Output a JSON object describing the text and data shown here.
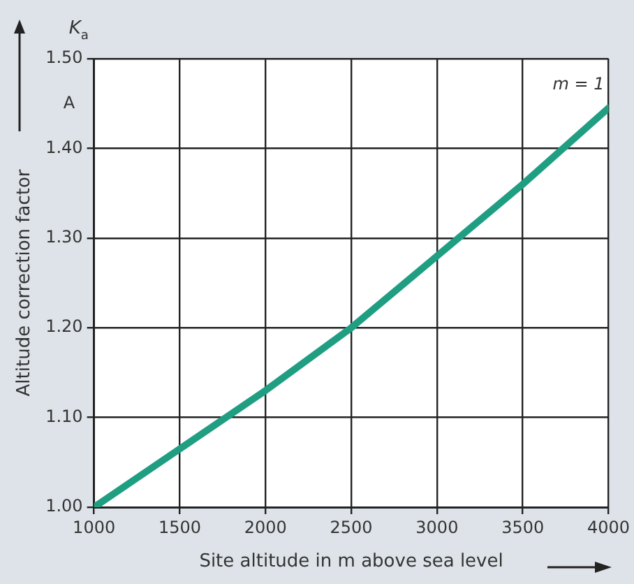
{
  "chart_data": {
    "type": "line",
    "xlabel": "Site altitude in m above sea level",
    "ylabel": "Altitude correction factor",
    "annotations": [
      "K$_{a}$",
      "A",
      "m = 1"
    ],
    "x": [
      1000,
      1500,
      2000,
      2500,
      3000,
      3500,
      4000
    ],
    "series": [
      {
        "color": "#1f9e82",
        "values": [
          1.0,
          1.065,
          1.13,
          1.2,
          1.28,
          1.36,
          1.445
        ]
      }
    ],
    "xlim": [
      1000,
      4000
    ],
    "xticks": [
      1000,
      1500,
      2000,
      2500,
      3000,
      3500,
      4000
    ],
    "ylim": [
      1.0,
      1.5
    ],
    "yticks": [
      {
        "value": 1.0,
        "label": "1.00"
      },
      {
        "value": 1.1,
        "label": "1.10"
      },
      {
        "value": 1.2,
        "label": "1.20"
      },
      {
        "value": 1.3,
        "label": "1.30"
      },
      {
        "value": 1.4,
        "label": "1.40"
      },
      {
        "value": 1.5,
        "label": "1.50"
      }
    ],
    "grid": true,
    "legend": false,
    "marker": "none",
    "line_style": "solid"
  }
}
